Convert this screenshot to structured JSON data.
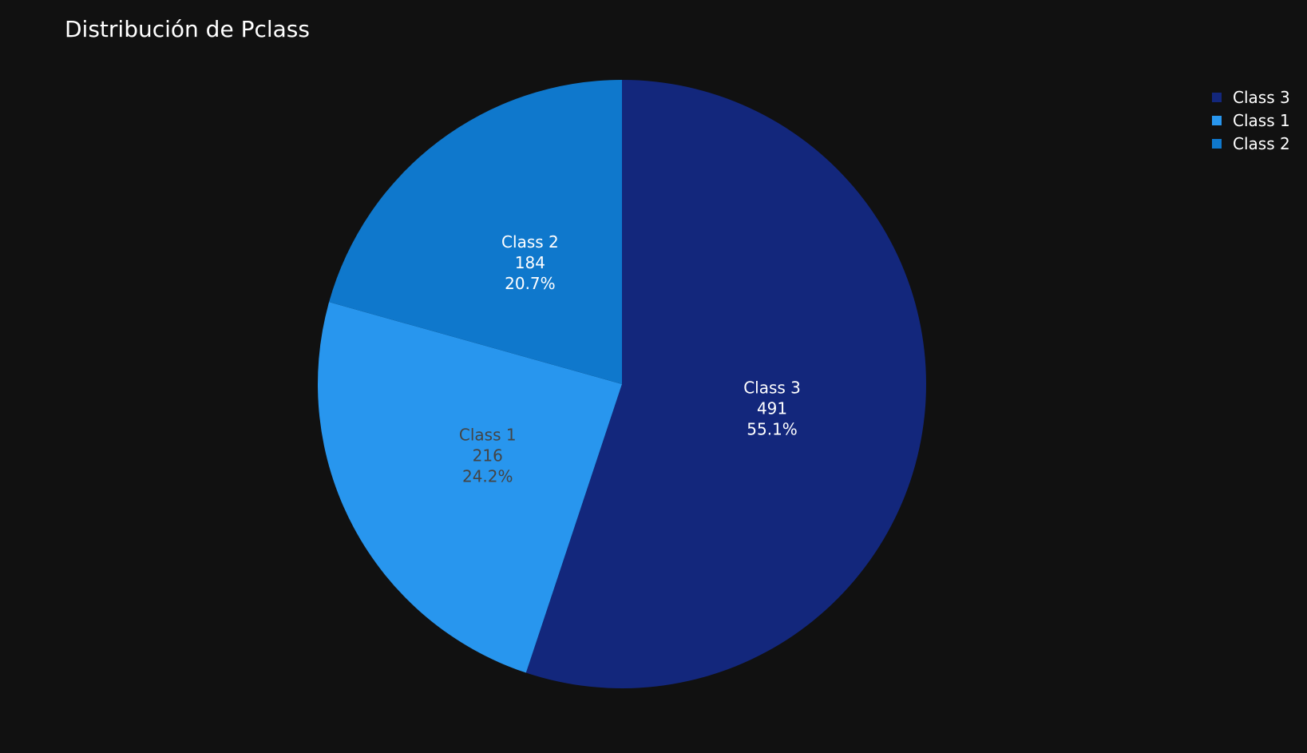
{
  "chart_data": {
    "type": "pie",
    "title": "Distribución de Pclass",
    "categories": [
      "Class 3",
      "Class 1",
      "Class 2"
    ],
    "values": [
      491,
      216,
      184
    ],
    "percent_labels": [
      "55.1%",
      "24.2%",
      "20.7%"
    ],
    "colors": [
      "#13277c",
      "#2896ee",
      "#0f78cc"
    ],
    "label_colors": [
      "#ffffff",
      "#444444",
      "#ffffff"
    ],
    "legend_position": "top-right",
    "direction": "clockwise",
    "start": "top"
  },
  "background_color": "#111111"
}
